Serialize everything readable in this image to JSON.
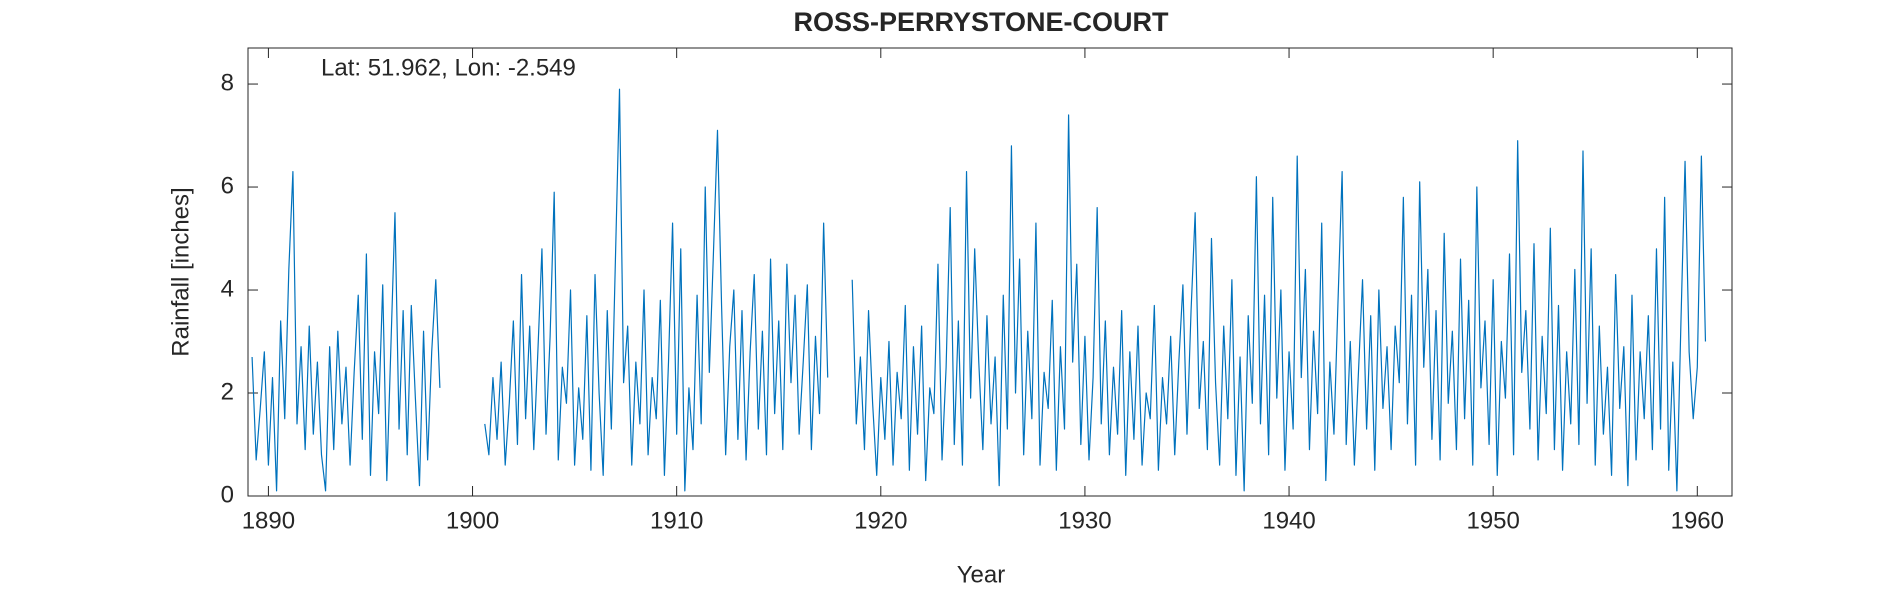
{
  "chart_data": {
    "type": "line",
    "title": "ROSS-PERRYSTONE-COURT",
    "annotation": "Lat: 51.962, Lon: -2.549",
    "x_label": "Year",
    "y_label": "Rainfall [inches]",
    "xlim": [
      1889,
      1961.7
    ],
    "ylim": [
      0,
      8.7
    ],
    "xticks": [
      1890,
      1900,
      1910,
      1920,
      1930,
      1940,
      1950,
      1960
    ],
    "yticks": [
      0,
      2,
      4,
      6,
      8
    ],
    "grid": false,
    "x": [
      1889.2,
      1889.4,
      1889.6,
      1889.8,
      1890,
      1890.2,
      1890.4,
      1890.6,
      1890.8,
      1891,
      1891.2,
      1891.4,
      1891.6,
      1891.8,
      1892,
      1892.2,
      1892.4,
      1892.6,
      1892.8,
      1893,
      1893.2,
      1893.4,
      1893.6,
      1893.8,
      1894,
      1894.2,
      1894.4,
      1894.6,
      1894.8,
      1895,
      1895.2,
      1895.4,
      1895.6,
      1895.8,
      1896,
      1896.2,
      1896.4,
      1896.6,
      1896.8,
      1897,
      1897.2,
      1897.4,
      1897.6,
      1897.8,
      1898,
      1898.2,
      1898.4,
      1899.4,
      1900.6,
      1900.8,
      1901,
      1901.2,
      1901.4,
      1901.6,
      1901.8,
      1902,
      1902.2,
      1902.4,
      1902.6,
      1902.8,
      1903,
      1903.2,
      1903.4,
      1903.6,
      1903.8,
      1904,
      1904.2,
      1904.4,
      1904.6,
      1904.8,
      1905,
      1905.2,
      1905.4,
      1905.6,
      1905.8,
      1906,
      1906.2,
      1906.4,
      1906.6,
      1906.8,
      1907,
      1907.2,
      1907.4,
      1907.6,
      1907.8,
      1908,
      1908.2,
      1908.4,
      1908.6,
      1908.8,
      1909,
      1909.2,
      1909.4,
      1909.6,
      1909.8,
      1910,
      1910.2,
      1910.4,
      1910.6,
      1910.8,
      1911,
      1911.2,
      1911.4,
      1911.6,
      1911.8,
      1912,
      1912.2,
      1912.4,
      1912.6,
      1912.8,
      1913,
      1913.2,
      1913.4,
      1913.6,
      1913.8,
      1914,
      1914.2,
      1914.4,
      1914.6,
      1914.8,
      1915,
      1915.2,
      1915.4,
      1915.6,
      1915.8,
      1916,
      1916.2,
      1916.4,
      1916.6,
      1916.8,
      1917,
      1917.2,
      1917.4,
      1918,
      1918.6,
      1918.8,
      1919,
      1919.2,
      1919.4,
      1919.6,
      1919.8,
      1920,
      1920.2,
      1920.4,
      1920.6,
      1920.8,
      1921,
      1921.2,
      1921.4,
      1921.6,
      1921.8,
      1922,
      1922.2,
      1922.4,
      1922.6,
      1922.8,
      1923,
      1923.2,
      1923.4,
      1923.6,
      1923.8,
      1924,
      1924.2,
      1924.4,
      1924.6,
      1924.8,
      1925,
      1925.2,
      1925.4,
      1925.6,
      1925.8,
      1926,
      1926.2,
      1926.4,
      1926.6,
      1926.8,
      1927,
      1927.2,
      1927.4,
      1927.6,
      1927.8,
      1928,
      1928.2,
      1928.4,
      1928.6,
      1928.8,
      1929,
      1929.2,
      1929.4,
      1929.6,
      1929.8,
      1930,
      1930.2,
      1930.4,
      1930.6,
      1930.8,
      1931,
      1931.2,
      1931.4,
      1931.6,
      1931.8,
      1932,
      1932.2,
      1932.4,
      1932.6,
      1932.8,
      1933,
      1933.2,
      1933.4,
      1933.6,
      1933.8,
      1934,
      1934.2,
      1934.4,
      1934.6,
      1934.8,
      1935,
      1935.2,
      1935.4,
      1935.6,
      1935.8,
      1936,
      1936.2,
      1936.4,
      1936.6,
      1936.8,
      1937,
      1937.2,
      1937.4,
      1937.6,
      1937.8,
      1938,
      1938.2,
      1938.4,
      1938.6,
      1938.8,
      1939,
      1939.2,
      1939.4,
      1939.6,
      1939.8,
      1940,
      1940.2,
      1940.4,
      1940.6,
      1940.8,
      1941,
      1941.2,
      1941.4,
      1941.6,
      1941.8,
      1942,
      1942.2,
      1942.4,
      1942.6,
      1942.8,
      1943,
      1943.2,
      1943.4,
      1943.6,
      1943.8,
      1944,
      1944.2,
      1944.4,
      1944.6,
      1944.8,
      1945,
      1945.2,
      1945.4,
      1945.6,
      1945.8,
      1946,
      1946.2,
      1946.4,
      1946.6,
      1946.8,
      1947,
      1947.2,
      1947.4,
      1947.6,
      1947.8,
      1948,
      1948.2,
      1948.4,
      1948.6,
      1948.8,
      1949,
      1949.2,
      1949.4,
      1949.6,
      1949.8,
      1950,
      1950.2,
      1950.4,
      1950.6,
      1950.8,
      1951,
      1951.2,
      1951.4,
      1951.6,
      1951.8,
      1952,
      1952.2,
      1952.4,
      1952.6,
      1952.8,
      1953,
      1953.2,
      1953.4,
      1953.6,
      1953.8,
      1954,
      1954.2,
      1954.4,
      1954.6,
      1954.8,
      1955,
      1955.2,
      1955.4,
      1955.6,
      1955.8,
      1956,
      1956.2,
      1956.4,
      1956.6,
      1956.8,
      1957,
      1957.2,
      1957.4,
      1957.6,
      1957.8,
      1958,
      1958.2,
      1958.4,
      1958.6,
      1958.8,
      1959,
      1959.2,
      1959.4,
      1959.6,
      1959.8,
      1960,
      1960.2,
      1960.4
    ],
    "series": [
      {
        "color": "#0072bd",
        "values": [
          2.7,
          0.7,
          1.7,
          2.8,
          0.6,
          2.3,
          0.1,
          3.4,
          1.5,
          4.4,
          6.3,
          1.4,
          2.9,
          0.9,
          3.3,
          1.2,
          2.6,
          0.8,
          0.1,
          2.9,
          0.9,
          3.2,
          1.4,
          2.5,
          0.6,
          2.4,
          3.9,
          1.1,
          4.7,
          0.4,
          2.8,
          1.6,
          4.1,
          0.3,
          2.9,
          5.5,
          1.3,
          3.6,
          0.8,
          3.7,
          1.9,
          0.2,
          3.2,
          0.7,
          2.8,
          4.2,
          2.1,
          null,
          1.4,
          0.8,
          2.3,
          1.1,
          2.6,
          0.6,
          1.8,
          3.4,
          1.0,
          4.3,
          1.5,
          3.3,
          0.9,
          2.8,
          4.8,
          1.2,
          3.1,
          5.9,
          0.7,
          2.5,
          1.8,
          4.0,
          0.6,
          2.1,
          1.1,
          3.5,
          0.5,
          4.3,
          2.0,
          0.4,
          3.6,
          1.3,
          4.6,
          7.9,
          2.2,
          3.3,
          0.6,
          2.6,
          1.4,
          4.0,
          0.8,
          2.3,
          1.5,
          3.8,
          0.4,
          2.6,
          5.3,
          1.2,
          4.8,
          0.1,
          2.1,
          0.9,
          3.9,
          1.4,
          6.0,
          2.4,
          4.7,
          7.1,
          3.7,
          0.8,
          2.9,
          4.0,
          1.1,
          3.6,
          0.7,
          2.8,
          4.3,
          1.3,
          3.2,
          0.8,
          4.6,
          1.6,
          3.4,
          0.9,
          4.5,
          2.2,
          3.9,
          1.2,
          2.6,
          4.1,
          0.9,
          3.1,
          1.6,
          5.3,
          2.3,
          null,
          4.2,
          1.4,
          2.7,
          0.9,
          3.6,
          1.8,
          0.4,
          2.3,
          1.1,
          3.0,
          0.6,
          2.4,
          1.5,
          3.7,
          0.5,
          2.9,
          1.2,
          3.3,
          0.3,
          2.1,
          1.6,
          4.5,
          0.7,
          2.5,
          5.6,
          1.0,
          3.4,
          0.6,
          6.3,
          1.9,
          4.8,
          2.6,
          0.9,
          3.5,
          1.4,
          2.7,
          0.2,
          3.9,
          1.3,
          6.8,
          2.0,
          4.6,
          0.8,
          3.2,
          1.5,
          5.3,
          0.6,
          2.4,
          1.7,
          3.8,
          0.5,
          2.9,
          1.3,
          7.4,
          2.6,
          4.5,
          1.0,
          3.1,
          0.7,
          2.3,
          5.6,
          1.4,
          3.4,
          0.8,
          2.5,
          1.2,
          3.6,
          0.4,
          2.8,
          1.1,
          3.3,
          0.6,
          2.0,
          1.5,
          3.7,
          0.5,
          2.3,
          1.4,
          3.1,
          0.8,
          2.6,
          4.1,
          1.2,
          3.6,
          5.5,
          1.7,
          3.0,
          0.9,
          5.0,
          2.2,
          0.6,
          3.3,
          1.5,
          4.2,
          0.4,
          2.7,
          0.1,
          3.5,
          1.8,
          6.2,
          1.4,
          3.9,
          0.8,
          5.8,
          1.9,
          4.0,
          0.5,
          2.8,
          1.3,
          6.6,
          2.3,
          4.4,
          0.9,
          3.2,
          1.6,
          5.3,
          0.3,
          2.6,
          1.2,
          3.8,
          6.3,
          1.0,
          3.0,
          0.6,
          2.4,
          4.2,
          1.3,
          3.5,
          0.5,
          4.0,
          1.7,
          2.9,
          0.9,
          3.3,
          2.2,
          5.8,
          1.4,
          3.9,
          0.6,
          6.1,
          2.5,
          4.4,
          1.1,
          3.6,
          0.7,
          5.1,
          1.8,
          3.2,
          0.9,
          4.6,
          1.5,
          3.8,
          0.6,
          6.0,
          2.1,
          3.4,
          1.0,
          4.2,
          0.4,
          3.0,
          1.9,
          4.7,
          0.8,
          6.9,
          2.4,
          3.6,
          1.3,
          4.9,
          0.7,
          3.1,
          1.6,
          5.2,
          0.9,
          3.7,
          0.5,
          2.8,
          1.4,
          4.4,
          1.0,
          6.7,
          1.8,
          4.8,
          0.6,
          3.3,
          1.2,
          2.5,
          0.4,
          4.3,
          1.7,
          2.9,
          0.2,
          3.9,
          0.7,
          2.8,
          1.5,
          3.5,
          0.9,
          4.8,
          1.3,
          5.8,
          0.5,
          2.6,
          0.1,
          3.4,
          6.5,
          2.8,
          1.5,
          2.5,
          6.6,
          3.0
        ]
      }
    ]
  }
}
